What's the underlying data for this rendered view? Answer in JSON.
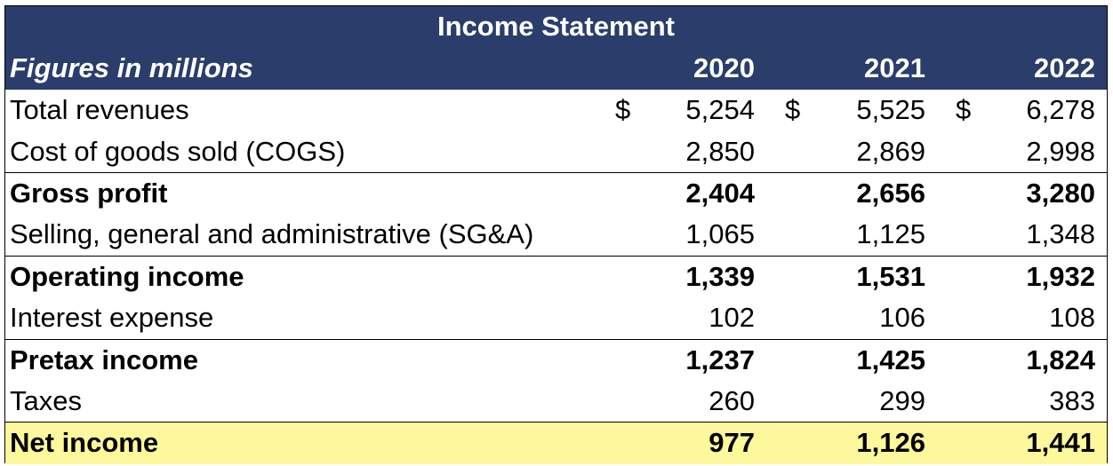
{
  "title": "Income Statement",
  "subheader": "Figures in millions",
  "years": [
    "2020",
    "2021",
    "2022"
  ],
  "currency_symbol": "$",
  "rows": [
    {
      "label": "Total revenues",
      "values": [
        "5,254",
        "5,525",
        "6,278"
      ]
    },
    {
      "label": "Cost of goods sold (COGS)",
      "values": [
        "2,850",
        "2,869",
        "2,998"
      ]
    },
    {
      "label": "Gross profit",
      "values": [
        "2,404",
        "2,656",
        "3,280"
      ]
    },
    {
      "label": "Selling, general and administrative (SG&A)",
      "values": [
        "1,065",
        "1,125",
        "1,348"
      ]
    },
    {
      "label": "Operating income",
      "values": [
        "1,339",
        "1,531",
        "1,932"
      ]
    },
    {
      "label": "Interest expense",
      "values": [
        "102",
        "106",
        "108"
      ]
    },
    {
      "label": "Pretax income",
      "values": [
        "1,237",
        "1,425",
        "1,824"
      ]
    },
    {
      "label": "Taxes",
      "values": [
        "260",
        "299",
        "383"
      ]
    },
    {
      "label": "Net income",
      "values": [
        "977",
        "1,126",
        "1,441"
      ]
    }
  ],
  "colors": {
    "header_bg": "#2a3d6b",
    "header_text": "#ffffff",
    "net_income_highlight": "#fdf89b"
  }
}
